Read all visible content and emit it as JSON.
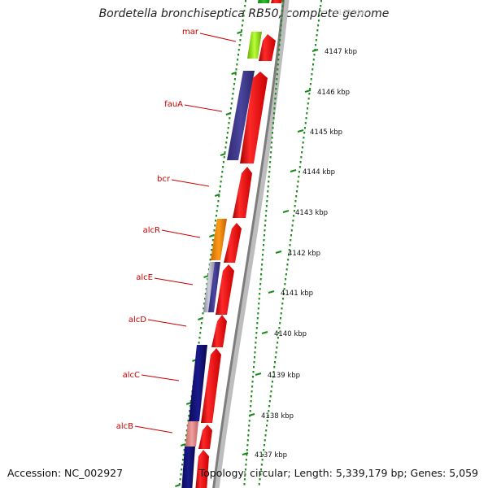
{
  "title": "Bordetella bronchiseptica RB50, complete genome",
  "accession_text": "Accession: NC_002927",
  "summary_text": "Topology: circular; Length: 5,339,179 bp; Genes: 5,059",
  "colors": {
    "label_text": "#cc0000",
    "leader_line": "#cc0000",
    "tick_green": "#1a8a1a",
    "forward_gene": "#ee0000",
    "backbone": "#9a9a9a"
  },
  "ticks": [
    {
      "label": "4148 kbp",
      "faded": true
    },
    {
      "label": "4147 kbp"
    },
    {
      "label": "4146 kbp"
    },
    {
      "label": "4145 kbp"
    },
    {
      "label": "4144 kbp"
    },
    {
      "label": "4143 kbp"
    },
    {
      "label": "4142 kbp"
    },
    {
      "label": "4141 kbp"
    },
    {
      "label": "4140 kbp"
    },
    {
      "label": "4139 kbp"
    },
    {
      "label": "4138 kbp"
    },
    {
      "label": "4137 kbp"
    }
  ],
  "genes": [
    {
      "name": "mar",
      "labeled": true
    },
    {
      "name": "fauA",
      "labeled": true
    },
    {
      "name": "bcr",
      "labeled": true
    },
    {
      "name": "alcR",
      "labeled": true
    },
    {
      "name": "alcE",
      "labeled": true
    },
    {
      "name": "alcD",
      "labeled": true
    },
    {
      "name": "alcC",
      "labeled": true
    },
    {
      "name": "alcB",
      "labeled": true
    }
  ]
}
